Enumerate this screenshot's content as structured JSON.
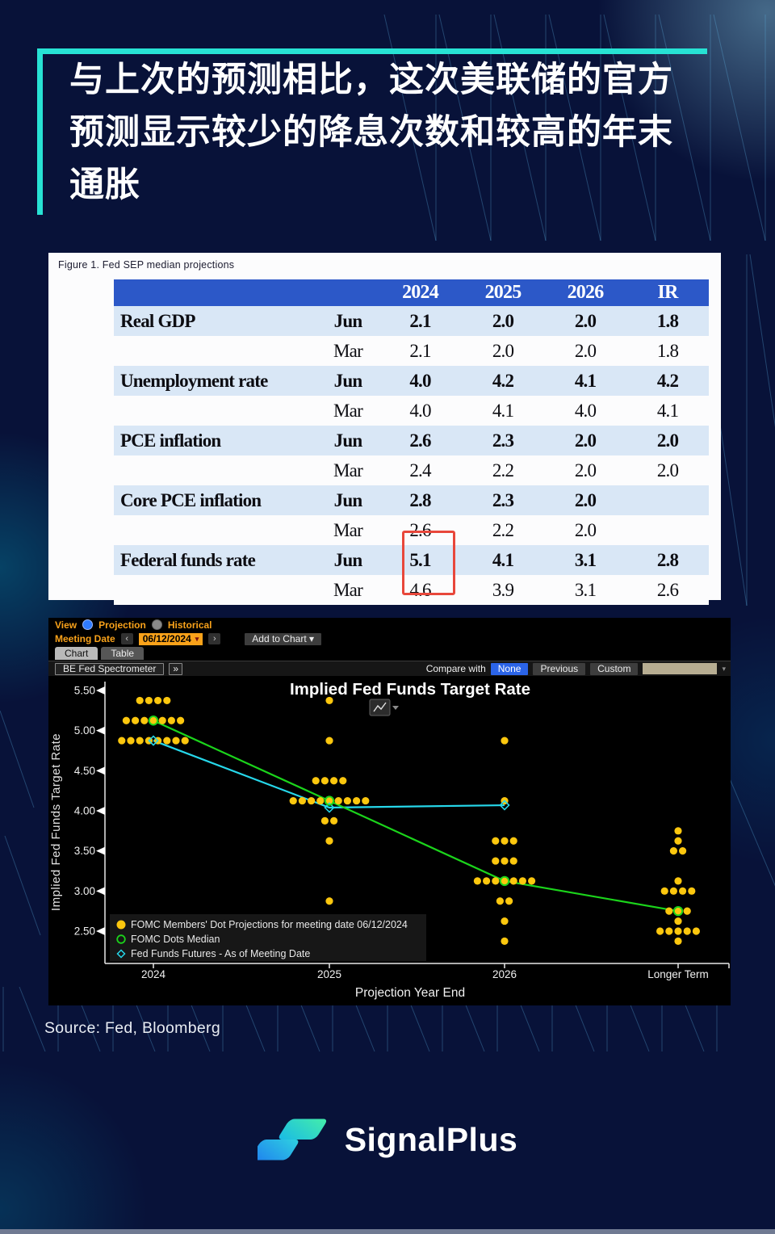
{
  "header": {
    "title_lines": [
      "与上次的预测相比，这次美联储的官方",
      "预测显示较少的降息次数和较高的年末",
      "通胀"
    ]
  },
  "figure_table": {
    "caption": "Figure 1. Fed SEP median projections",
    "col_headers": [
      "2024",
      "2025",
      "2026",
      "IR"
    ],
    "rows": [
      {
        "label": "Real GDP",
        "month": "Jun",
        "values": [
          "2.1",
          "2.0",
          "2.0",
          "1.8"
        ],
        "bold": true,
        "shaded": true
      },
      {
        "label": "",
        "month": "Mar",
        "values": [
          "2.1",
          "2.0",
          "2.0",
          "1.8"
        ],
        "bold": false,
        "shaded": false
      },
      {
        "label": "Unemployment rate",
        "month": "Jun",
        "values": [
          "4.0",
          "4.2",
          "4.1",
          "4.2"
        ],
        "bold": true,
        "shaded": true
      },
      {
        "label": "",
        "month": "Mar",
        "values": [
          "4.0",
          "4.1",
          "4.0",
          "4.1"
        ],
        "bold": false,
        "shaded": false
      },
      {
        "label": "PCE inflation",
        "month": "Jun",
        "values": [
          "2.6",
          "2.3",
          "2.0",
          "2.0"
        ],
        "bold": true,
        "shaded": true
      },
      {
        "label": "",
        "month": "Mar",
        "values": [
          "2.4",
          "2.2",
          "2.0",
          "2.0"
        ],
        "bold": false,
        "shaded": false
      },
      {
        "label": "Core PCE inflation",
        "month": "Jun",
        "values": [
          "2.8",
          "2.3",
          "2.0",
          ""
        ],
        "bold": true,
        "shaded": true
      },
      {
        "label": "",
        "month": "Mar",
        "values": [
          "2.6",
          "2.2",
          "2.0",
          ""
        ],
        "bold": false,
        "shaded": false
      },
      {
        "label": "Federal funds rate",
        "month": "Jun",
        "values": [
          "5.1",
          "4.1",
          "3.1",
          "2.8"
        ],
        "bold": true,
        "shaded": true
      },
      {
        "label": "",
        "month": "Mar",
        "values": [
          "4.6",
          "3.9",
          "3.1",
          "2.6"
        ],
        "bold": false,
        "shaded": false
      }
    ],
    "highlight_box": {
      "column": "2024",
      "rows": [
        "Jun",
        "Mar"
      ],
      "values": [
        "5.1",
        "4.6"
      ],
      "color": "#e8473b"
    }
  },
  "terminal": {
    "view": {
      "label": "View",
      "options": [
        {
          "label": "Projection",
          "selected": true
        },
        {
          "label": "Historical",
          "selected": false
        }
      ]
    },
    "meeting_date": {
      "label": "Meeting Date",
      "value": "06/12/2024"
    },
    "add_to_chart": "Add to Chart ▾",
    "tabs": [
      {
        "label": "Chart",
        "active": true
      },
      {
        "label": "Table",
        "active": false
      }
    ],
    "spectrometer": "BE Fed Spectrometer",
    "expand": "»",
    "compare_with": "Compare with",
    "compare_options": [
      {
        "label": "None",
        "selected": true
      },
      {
        "label": "Previous",
        "selected": false
      },
      {
        "label": "Custom",
        "selected": false
      }
    ]
  },
  "icons": {
    "caret_down": "▾",
    "chevron_left": "‹",
    "chevron_right": "›"
  },
  "chart_data": {
    "type": "scatter",
    "title": "Implied Fed Funds Target Rate",
    "xlabel": "Projection Year End",
    "ylabel": "Implied Fed Funds Target Rate",
    "categories": [
      "2024",
      "2025",
      "2026",
      "Longer Term"
    ],
    "ylim": [
      2.25,
      5.62
    ],
    "yticks": [
      "5.50",
      "5.00",
      "4.50",
      "4.00",
      "3.50",
      "3.00",
      "2.50"
    ],
    "grid": false,
    "legend_position": "bottom-left",
    "colors": {
      "dots": "#fcc70e",
      "median": "#1bd41b",
      "futures": "#26d7ea",
      "axis": "#e8e8e8"
    },
    "dots": [
      {
        "year": "2024",
        "value": 5.375,
        "count": 4
      },
      {
        "year": "2024",
        "value": 5.125,
        "count": 7
      },
      {
        "year": "2024",
        "value": 4.875,
        "count": 8
      },
      {
        "year": "2025",
        "value": 5.375,
        "count": 1
      },
      {
        "year": "2025",
        "value": 4.875,
        "count": 1
      },
      {
        "year": "2025",
        "value": 4.375,
        "count": 4
      },
      {
        "year": "2025",
        "value": 4.125,
        "count": 9
      },
      {
        "year": "2025",
        "value": 3.875,
        "count": 2
      },
      {
        "year": "2025",
        "value": 3.625,
        "count": 1
      },
      {
        "year": "2025",
        "value": 2.875,
        "count": 1
      },
      {
        "year": "2026",
        "value": 4.875,
        "count": 1
      },
      {
        "year": "2026",
        "value": 4.125,
        "count": 1
      },
      {
        "year": "2026",
        "value": 3.625,
        "count": 3
      },
      {
        "year": "2026",
        "value": 3.375,
        "count": 3
      },
      {
        "year": "2026",
        "value": 3.125,
        "count": 7
      },
      {
        "year": "2026",
        "value": 2.875,
        "count": 2
      },
      {
        "year": "2026",
        "value": 2.625,
        "count": 1
      },
      {
        "year": "2026",
        "value": 2.375,
        "count": 1
      },
      {
        "year": "Longer Term",
        "value": 3.75,
        "count": 1
      },
      {
        "year": "Longer Term",
        "value": 3.625,
        "count": 1
      },
      {
        "year": "Longer Term",
        "value": 3.5,
        "count": 2
      },
      {
        "year": "Longer Term",
        "value": 3.125,
        "count": 1
      },
      {
        "year": "Longer Term",
        "value": 3.0,
        "count": 4
      },
      {
        "year": "Longer Term",
        "value": 2.75,
        "count": 3
      },
      {
        "year": "Longer Term",
        "value": 2.625,
        "count": 1
      },
      {
        "year": "Longer Term",
        "value": 2.5,
        "count": 5
      },
      {
        "year": "Longer Term",
        "value": 2.375,
        "count": 1
      }
    ],
    "series": [
      {
        "name": "FOMC Dots Median",
        "type": "line-open-circle",
        "x": [
          "2024",
          "2025",
          "2026",
          "Longer Term"
        ],
        "values": [
          5.125,
          4.125,
          3.125,
          2.75
        ]
      },
      {
        "name": "Fed Funds Futures - As of Meeting Date",
        "type": "line-open-diamond",
        "x": [
          "2024",
          "2025",
          "2026"
        ],
        "values": [
          4.875,
          4.04,
          4.07
        ]
      }
    ],
    "legend": [
      {
        "marker": "filled-circle",
        "color": "#fcc70e",
        "label": "FOMC Members' Dot Projections for meeting date 06/12/2024"
      },
      {
        "marker": "open-circle",
        "color": "#1bd41b",
        "label": "FOMC Dots Median"
      },
      {
        "marker": "open-diamond",
        "color": "#26d7ea",
        "label": "Fed Funds Futures - As of Meeting Date"
      }
    ]
  },
  "source": "Source: Fed, Bloomberg",
  "brand": {
    "name": "SignalPlus"
  }
}
